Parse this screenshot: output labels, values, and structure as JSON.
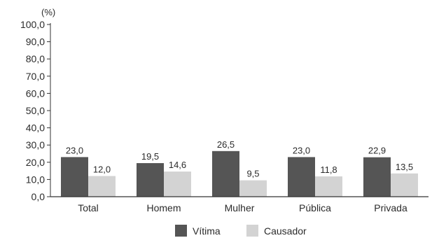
{
  "chart_data": {
    "type": "bar",
    "unit_label": "(%)",
    "categories": [
      "Total",
      "Homem",
      "Mulher",
      "Pública",
      "Privada"
    ],
    "series": [
      {
        "name": "Vítima",
        "color": "#555555",
        "values": [
          23.0,
          19.5,
          26.5,
          23.0,
          22.9
        ],
        "labels": [
          "23,0",
          "19,5",
          "26,5",
          "23,0",
          "22,9"
        ]
      },
      {
        "name": "Causador",
        "color": "#d3d3d3",
        "values": [
          12.0,
          14.6,
          9.5,
          11.8,
          13.5
        ],
        "labels": [
          "12,0",
          "14,6",
          "9,5",
          "11,8",
          "13,5"
        ]
      }
    ],
    "ylim": [
      0,
      100
    ],
    "yticks": [
      "0,0",
      "10,0",
      "20,0",
      "30,0",
      "40,0",
      "50,0",
      "60,0",
      "70,0",
      "80,0",
      "90,0",
      "100,0"
    ],
    "legend_position": "bottom-center",
    "grid": false,
    "axis_color": "#333333"
  }
}
